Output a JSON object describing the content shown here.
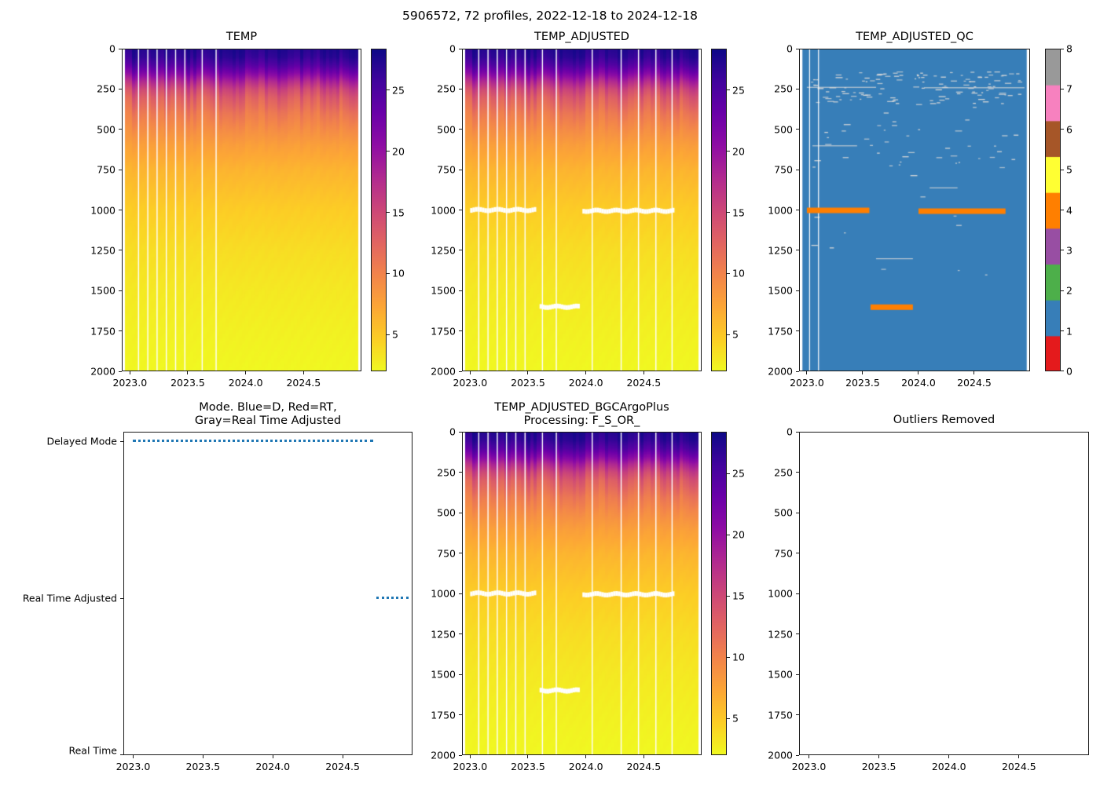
{
  "suptitle": "5906572, 72 profiles, 2022-12-18 to 2024-12-18",
  "axes": {
    "x_range": [
      2022.93,
      2025.0
    ],
    "x_ticks": [
      2023.0,
      2023.5,
      2024.0,
      2024.5
    ],
    "data_x_extent": [
      2022.96,
      2024.97
    ],
    "depth_range": [
      0,
      2000
    ],
    "depth_ticks": [
      0,
      250,
      500,
      750,
      1000,
      1250,
      1500,
      1750,
      2000
    ]
  },
  "temp_scale": {
    "vmin": 2,
    "vmax": 28.4,
    "colorbar_ticks": [
      5,
      10,
      15,
      20,
      25
    ]
  },
  "temperature_profile": [
    [
      0,
      27.3
    ],
    [
      50,
      26.6
    ],
    [
      100,
      24.8
    ],
    [
      150,
      21.8
    ],
    [
      200,
      18.2
    ],
    [
      250,
      15.2
    ],
    [
      300,
      13.2
    ],
    [
      400,
      10.8
    ],
    [
      500,
      9.2
    ],
    [
      600,
      7.8
    ],
    [
      750,
      6.3
    ],
    [
      1000,
      4.7
    ],
    [
      1250,
      3.7
    ],
    [
      1500,
      3.0
    ],
    [
      1750,
      2.5
    ],
    [
      2000,
      2.1
    ]
  ],
  "colors": {
    "plasma_stops": [
      [
        0.0,
        "#0d0887"
      ],
      [
        0.1,
        "#41049d"
      ],
      [
        0.2,
        "#6a00a8"
      ],
      [
        0.3,
        "#8f0da4"
      ],
      [
        0.4,
        "#b12a90"
      ],
      [
        0.5,
        "#cc4778"
      ],
      [
        0.6,
        "#e16462"
      ],
      [
        0.7,
        "#f2844b"
      ],
      [
        0.8,
        "#fca636"
      ],
      [
        0.9,
        "#fcce25"
      ],
      [
        1.0,
        "#f0f921"
      ]
    ],
    "qc_flag_colors": [
      "#e41a1c",
      "#377eb8",
      "#4daf4a",
      "#984ea3",
      "#ff7f00",
      "#ffff33",
      "#a65628",
      "#f781bf",
      "#999999"
    ],
    "qc_background": "#377eb8",
    "qc_highlight": "#ff7f00",
    "mode_line": "#1f77b4",
    "gap_line": "#ffffff",
    "speckle": "#d8d8d8",
    "axis": "#1a1a1a"
  },
  "chart_data": [
    {
      "id": "temp",
      "type": "heatmap",
      "title": "TEMP",
      "gap_lines_x": [
        2023.07,
        2023.15,
        2023.23,
        2023.31,
        2023.39,
        2023.47,
        2023.62,
        2023.74
      ],
      "white_segments": []
    },
    {
      "id": "temp_adjusted",
      "type": "heatmap",
      "title": "TEMP_ADJUSTED",
      "gap_lines_x": [
        2023.07,
        2023.15,
        2023.23,
        2023.31,
        2023.39,
        2023.47,
        2023.62,
        2023.74,
        2024.05,
        2024.3,
        2024.45,
        2024.6,
        2024.74
      ],
      "white_segments": [
        {
          "depth": 1000,
          "x0": 2023.0,
          "x1": 2023.56
        },
        {
          "depth": 1005,
          "x0": 2023.97,
          "x1": 2024.75
        },
        {
          "depth": 1600,
          "x0": 2023.6,
          "x1": 2023.94
        }
      ]
    },
    {
      "id": "temp_adjusted_qc",
      "type": "qc_heatmap",
      "title": "TEMP_ADJUSTED_QC",
      "qc_ticks": [
        0,
        1,
        2,
        3,
        4,
        5,
        6,
        7,
        8
      ],
      "dominant_flag": 1,
      "highlight_flag": 4,
      "speckle_seed": 1234,
      "speckle_count": 175,
      "gap_lines_x": [
        2023.02,
        2023.1
      ],
      "gray_lines": [
        {
          "depth": 237,
          "x0": 2023.0,
          "x1": 2023.62
        },
        {
          "depth": 240,
          "x0": 2024.05,
          "x1": 2024.95
        },
        {
          "depth": 600,
          "x0": 2023.05,
          "x1": 2023.45
        },
        {
          "depth": 1300,
          "x0": 2023.62,
          "x1": 2023.95
        },
        {
          "depth": 860,
          "x0": 2024.1,
          "x1": 2024.35
        }
      ],
      "orange_segments": [
        {
          "depth": 1000,
          "x0": 2023.0,
          "x1": 2023.56
        },
        {
          "depth": 1005,
          "x0": 2024.0,
          "x1": 2024.78
        },
        {
          "depth": 1600,
          "x0": 2023.57,
          "x1": 2023.95
        }
      ]
    },
    {
      "id": "mode",
      "type": "categorical_lines",
      "title_lines": [
        "Mode. Blue=D, Red=RT,",
        "Gray=Real Time Adjusted"
      ],
      "ytick_labels": [
        "Delayed Mode",
        "Real Time Adjusted",
        "Real Time"
      ],
      "level_fractions": [
        0.03,
        0.515,
        1.0
      ],
      "segments": [
        {
          "level": 0,
          "x0": 2023.0,
          "x1": 2024.72
        },
        {
          "level": 1,
          "x0": 2024.74,
          "x1": 2024.97
        }
      ]
    },
    {
      "id": "temp_adjusted_bgc",
      "type": "heatmap",
      "title_lines": [
        "TEMP_ADJUSTED_BGCArgoPlus",
        "Processing: F_S_OR_"
      ],
      "gap_lines_x": [
        2023.07,
        2023.15,
        2023.23,
        2023.31,
        2023.39,
        2023.47,
        2023.62,
        2023.74,
        2024.05,
        2024.3,
        2024.45,
        2024.6,
        2024.74
      ],
      "white_segments": [
        {
          "depth": 1000,
          "x0": 2023.0,
          "x1": 2023.56
        },
        {
          "depth": 1005,
          "x0": 2023.97,
          "x1": 2024.75
        },
        {
          "depth": 1600,
          "x0": 2023.6,
          "x1": 2023.94
        }
      ]
    },
    {
      "id": "outliers_removed",
      "type": "empty",
      "title": "Outliers Removed"
    }
  ]
}
